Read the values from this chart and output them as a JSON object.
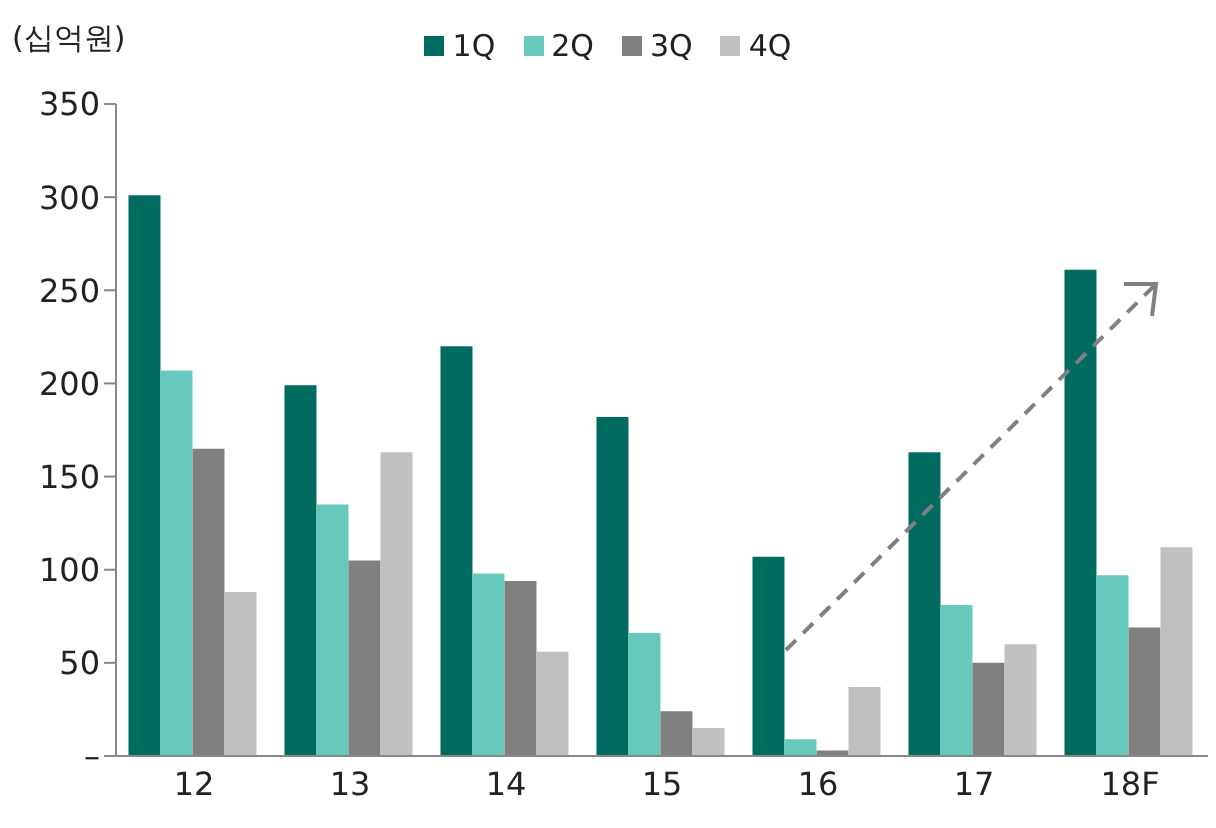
{
  "chart_data": {
    "type": "bar",
    "ylabel": "(십억원)",
    "categories": [
      "12",
      "13",
      "14",
      "15",
      "16",
      "17",
      "18F"
    ],
    "series": [
      {
        "name": "1Q",
        "color": "#006b5f",
        "values": [
          301,
          199,
          220,
          182,
          107,
          163,
          261
        ]
      },
      {
        "name": "2Q",
        "color": "#66c9bb",
        "values": [
          207,
          135,
          98,
          66,
          9,
          81,
          97
        ]
      },
      {
        "name": "3Q",
        "color": "#808080",
        "values": [
          165,
          105,
          94,
          24,
          3,
          50,
          69
        ]
      },
      {
        "name": "4Q",
        "color": "#c0c0c0",
        "values": [
          88,
          163,
          56,
          15,
          37,
          60,
          112
        ]
      }
    ],
    "ylim": [
      0,
      350
    ],
    "yticks": [
      {
        "value": 0,
        "label": "–"
      },
      50,
      100,
      150,
      200,
      250,
      300,
      350
    ],
    "grid": false,
    "legend": "top"
  }
}
